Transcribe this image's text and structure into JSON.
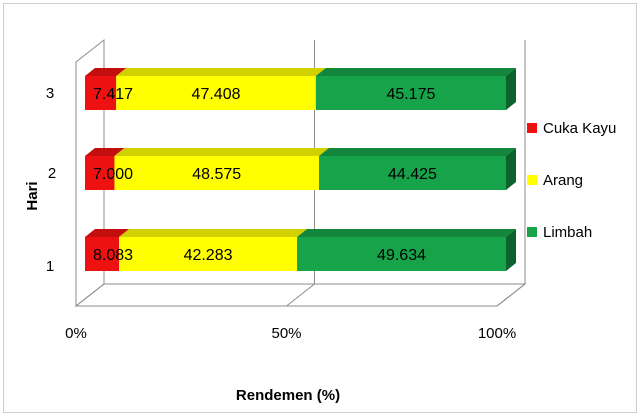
{
  "chart_data": {
    "type": "bar",
    "orientation": "horizontal",
    "stacked": "100%",
    "three_d": true,
    "xlabel": "Rendemen (%)",
    "ylabel": "Hari",
    "xlim": [
      0,
      100
    ],
    "x_ticks": [
      "0%",
      "50%",
      "100%"
    ],
    "categories": [
      "1",
      "2",
      "3"
    ],
    "series": [
      {
        "name": "Cuka Kayu",
        "color": "#ee1111",
        "values": [
          8.083,
          7.0,
          7.417
        ],
        "labels": [
          "8.083",
          "7.000",
          "7.417"
        ]
      },
      {
        "name": "Arang",
        "color": "#ffff00",
        "values": [
          42.283,
          48.575,
          47.408
        ],
        "labels": [
          "42.283",
          "48.575",
          "47.408"
        ]
      },
      {
        "name": "Limbah",
        "color": "#16a34a",
        "values": [
          49.634,
          44.425,
          45.175
        ],
        "labels": [
          "49.634",
          "44.425",
          "45.175"
        ]
      }
    ],
    "legend_position": "right",
    "gridlines": "vertical"
  }
}
